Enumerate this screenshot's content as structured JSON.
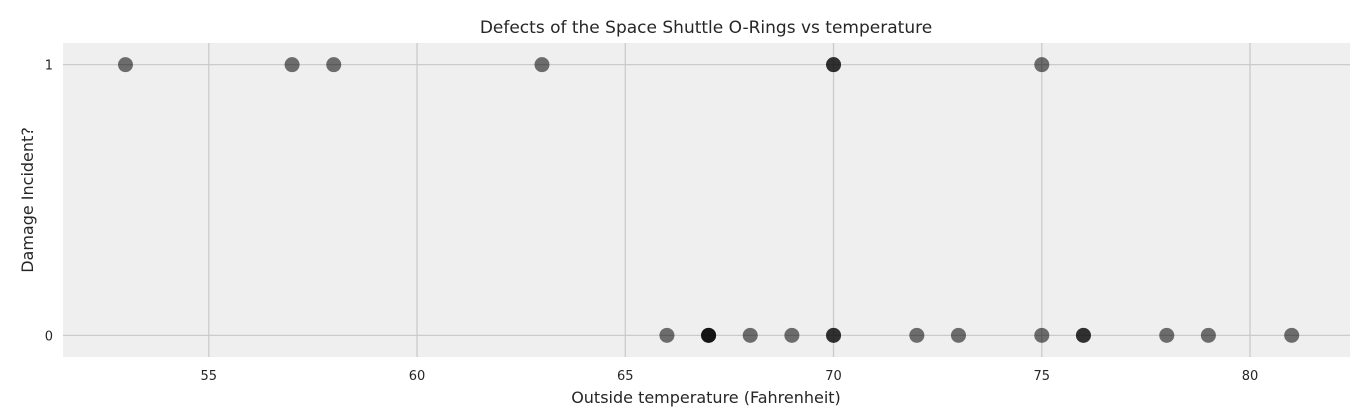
{
  "chart_data": {
    "type": "scatter",
    "title": "Defects of the Space Shuttle O-Rings vs temperature",
    "xlabel": "Outside temperature (Fahrenheit)",
    "ylabel": "Damage Incident?",
    "xlim": [
      51.5,
      82.4
    ],
    "ylim": [
      -0.08,
      1.08
    ],
    "xticks": [
      55,
      60,
      65,
      70,
      75,
      80
    ],
    "yticks": [
      0,
      1
    ],
    "grid": true,
    "background_color": "#efefef",
    "point_color": "#000000",
    "points": [
      {
        "x": 53,
        "y": 1
      },
      {
        "x": 57,
        "y": 1
      },
      {
        "x": 58,
        "y": 1
      },
      {
        "x": 63,
        "y": 1
      },
      {
        "x": 66,
        "y": 0
      },
      {
        "x": 67,
        "y": 0
      },
      {
        "x": 67,
        "y": 0
      },
      {
        "x": 67,
        "y": 0
      },
      {
        "x": 68,
        "y": 0
      },
      {
        "x": 69,
        "y": 0
      },
      {
        "x": 70,
        "y": 0
      },
      {
        "x": 70,
        "y": 0
      },
      {
        "x": 70,
        "y": 1
      },
      {
        "x": 70,
        "y": 1
      },
      {
        "x": 72,
        "y": 0
      },
      {
        "x": 73,
        "y": 0
      },
      {
        "x": 75,
        "y": 0
      },
      {
        "x": 75,
        "y": 1
      },
      {
        "x": 76,
        "y": 0
      },
      {
        "x": 76,
        "y": 0
      },
      {
        "x": 78,
        "y": 0
      },
      {
        "x": 79,
        "y": 0
      },
      {
        "x": 81,
        "y": 0
      }
    ]
  }
}
